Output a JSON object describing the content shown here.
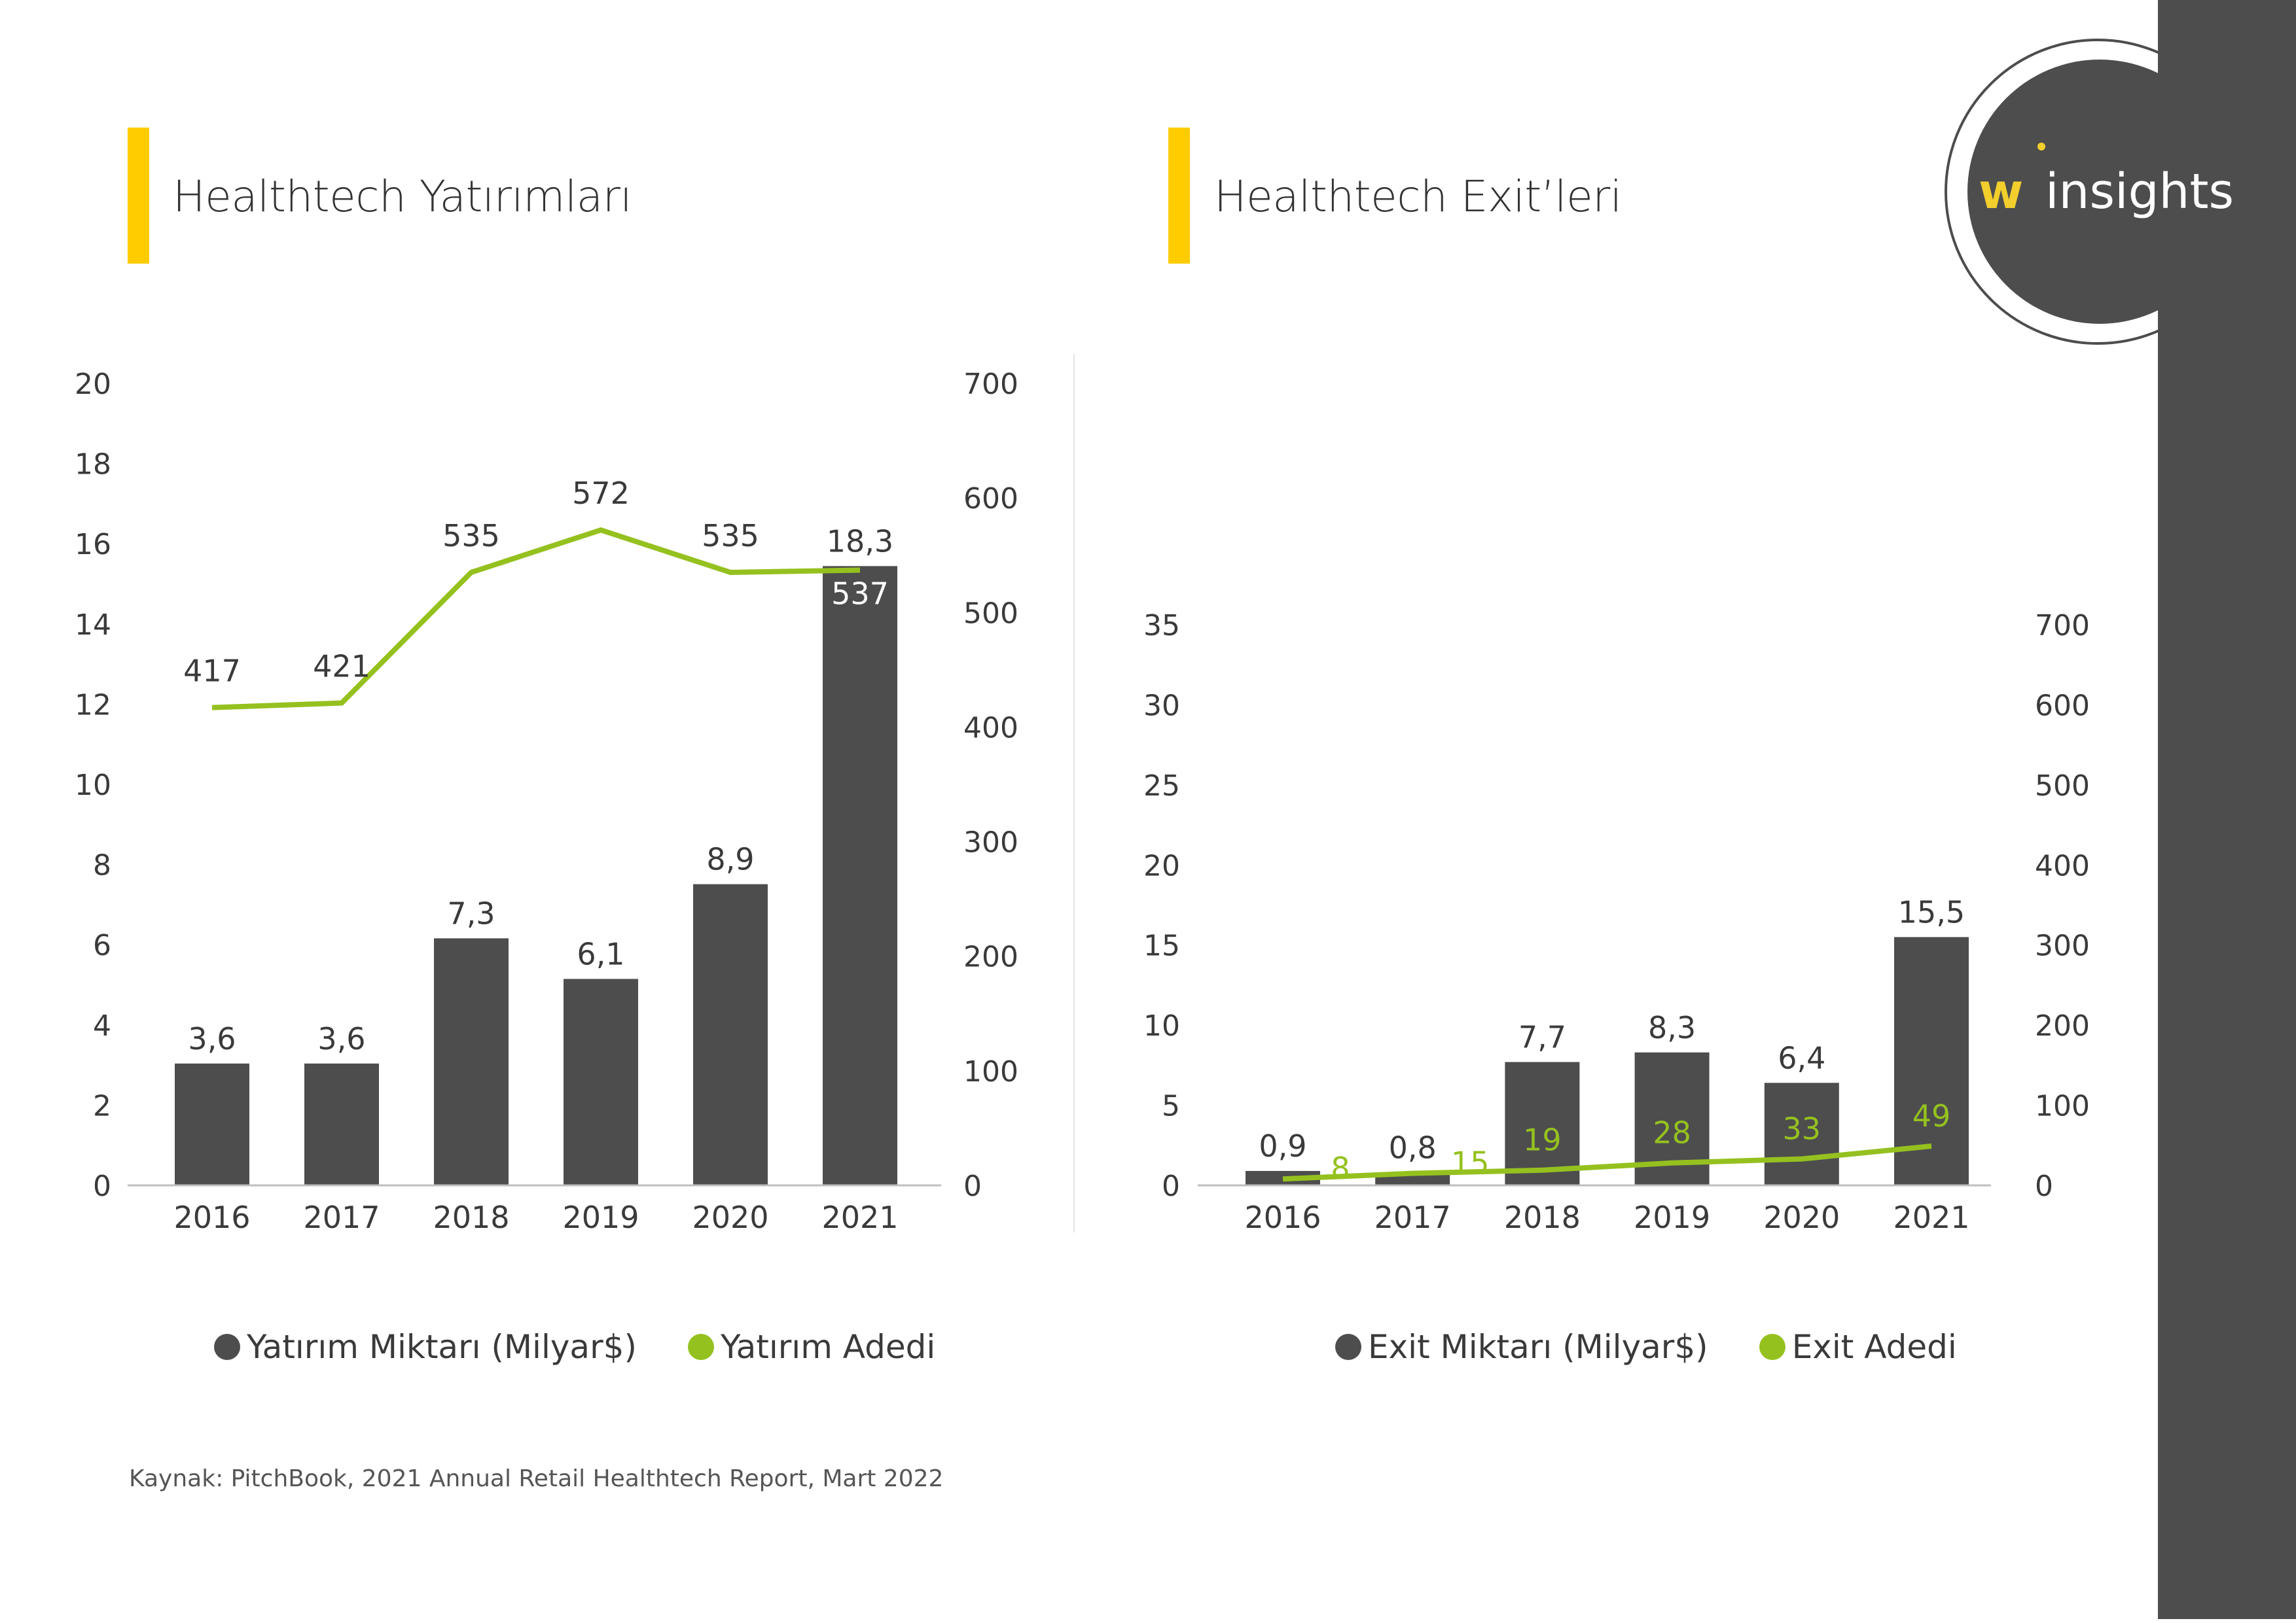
{
  "colors": {
    "bar": "#4d4d4d",
    "line": "#95c11f",
    "accent": "#ffcc00",
    "sidebar": "#4d4d4d"
  },
  "logo": {
    "text_w": "w",
    "text_rest": "insights"
  },
  "source": "Kaynak: PitchBook, 2021 Annual Retail Healthtech Report, Mart 2022",
  "chart_data": [
    {
      "type": "bar+line",
      "title": "Healthtech Yatırımları",
      "categories": [
        "2016",
        "2017",
        "2018",
        "2019",
        "2020",
        "2021"
      ],
      "series": [
        {
          "name": "Yatırım Miktarı (Milyar$)",
          "type": "bar",
          "axis": "left",
          "values": [
            3.6,
            3.6,
            7.3,
            6.1,
            8.9,
            18.3
          ],
          "labels": [
            "3,6",
            "3,6",
            "7,3",
            "6,1",
            "8,9",
            "18,3"
          ]
        },
        {
          "name": "Yatırım Adedi",
          "type": "line",
          "axis": "right",
          "values": [
            417,
            421,
            535,
            572,
            535,
            537
          ],
          "labels": [
            "417",
            "421",
            "535",
            "572",
            "535",
            "537"
          ]
        }
      ],
      "left_axis": {
        "min": 0,
        "max": 20,
        "ticks": [
          "0",
          "2",
          "4",
          "6",
          "8",
          "10",
          "12",
          "14",
          "16",
          "18",
          "20"
        ]
      },
      "right_axis": {
        "min": 0,
        "max": 700,
        "ticks": [
          "0",
          "100",
          "200",
          "300",
          "400",
          "500",
          "600",
          "700"
        ]
      },
      "grid": false,
      "legend": "bottom"
    },
    {
      "type": "bar+line",
      "title": "Healthtech Exit’leri",
      "categories": [
        "2016",
        "2017",
        "2018",
        "2019",
        "2020",
        "2021"
      ],
      "series": [
        {
          "name": "Exit Miktarı (Milyar$)",
          "type": "bar",
          "axis": "left",
          "values": [
            0.9,
            0.8,
            7.7,
            8.3,
            6.4,
            15.5
          ],
          "labels": [
            "0,9",
            "0,8",
            "7,7",
            "8,3",
            "6,4",
            "15,5"
          ]
        },
        {
          "name": "Exit Adedi",
          "type": "line",
          "axis": "right",
          "values": [
            8,
            15,
            19,
            28,
            33,
            49
          ],
          "labels": [
            "8",
            "15",
            "19",
            "28",
            "33",
            "49"
          ]
        }
      ],
      "left_axis": {
        "min": 0,
        "max": 35,
        "ticks": [
          "0",
          "5",
          "10",
          "15",
          "20",
          "25",
          "30",
          "35"
        ]
      },
      "right_axis": {
        "min": 0,
        "max": 700,
        "ticks": [
          "0",
          "100",
          "200",
          "300",
          "400",
          "500",
          "600",
          "700"
        ]
      },
      "grid": false,
      "legend": "bottom"
    }
  ]
}
